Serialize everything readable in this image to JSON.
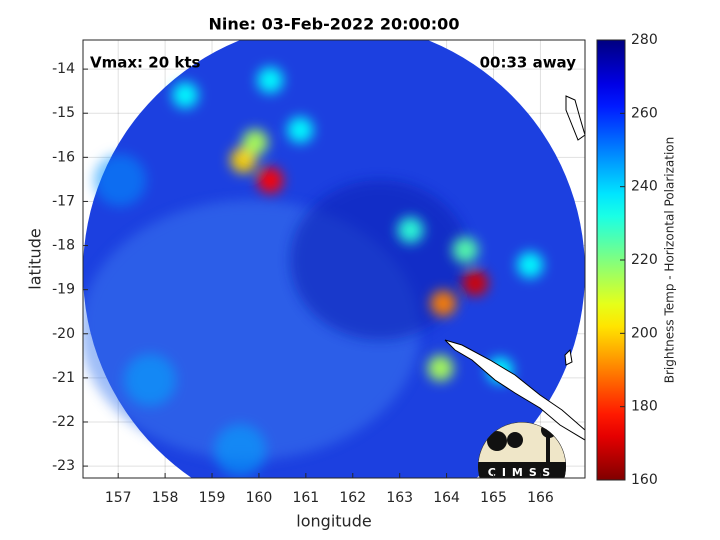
{
  "chart_data": {
    "type": "heatmap",
    "title": "Nine: 03-Feb-2022 20:00:00",
    "x_label": "longitude",
    "y_label": "latitude",
    "annotations": [
      "Vmax: 20 kts",
      "00:33 away"
    ],
    "logo_text": "CIMSS",
    "colorbar_label": "Brightness Temp - Horizontal Polarization",
    "colormap": "jet_r",
    "x": [
      160.24,
      159.67,
      159.92,
      164.61,
      163.93,
      164.4,
      163.87,
      158.43,
      160.88,
      160.24,
      163.23,
      165.78,
      165.14,
      157.68,
      159.6,
      157.04
    ],
    "y": [
      -16.52,
      -16.06,
      -15.66,
      -18.85,
      -19.31,
      -18.1,
      -20.78,
      -14.59,
      -15.38,
      -14.25,
      -17.65,
      -18.44,
      -20.83,
      -21.05,
      -22.64,
      -16.52
    ],
    "values": [
      175,
      200,
      215,
      170,
      190,
      225,
      215,
      235,
      235,
      235,
      230,
      235,
      235,
      245,
      245,
      248
    ],
    "xlim": [
      156.25,
      166.95
    ],
    "ylim": [
      -23.27,
      -13.34
    ],
    "xticks": [
      157,
      158,
      159,
      160,
      161,
      162,
      163,
      164,
      165,
      166
    ],
    "yticks": [
      -14,
      -15,
      -16,
      -17,
      -18,
      -19,
      -20,
      -21,
      -22,
      -23
    ],
    "clim": [
      160,
      280
    ],
    "cticks": [
      160,
      180,
      200,
      220,
      240,
      260,
      280
    ],
    "grid": true
  }
}
